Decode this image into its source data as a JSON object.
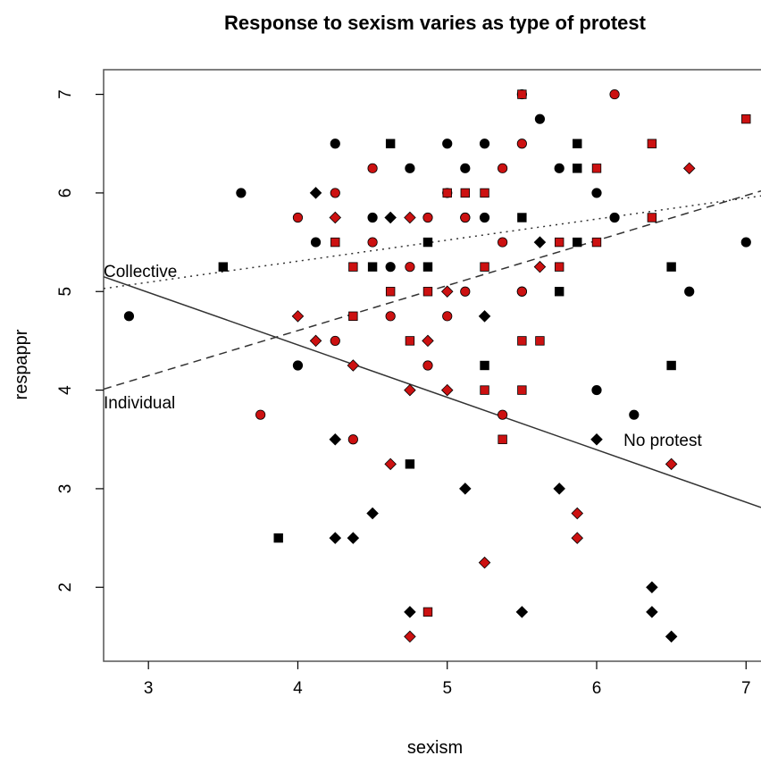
{
  "chart_data": {
    "type": "scatter",
    "title": "Response to sexism varies as type of protest",
    "xlabel": "sexism",
    "ylabel": "respappr",
    "xlim": [
      2.7,
      7.1
    ],
    "ylim": [
      1.25,
      7.25
    ],
    "x_ticks": [
      "3",
      "4",
      "5",
      "6",
      "7"
    ],
    "y_ticks": [
      "2",
      "3",
      "4",
      "5",
      "6",
      "7"
    ],
    "grid": false,
    "legend": "none",
    "colors": {
      "black": "#000000",
      "red": "#cc1111"
    },
    "series": [
      {
        "shape": "circle",
        "color": "black",
        "points": [
          [
            2.87,
            4.75
          ],
          [
            3.62,
            6.0
          ],
          [
            4.0,
            4.25
          ],
          [
            4.12,
            5.5
          ],
          [
            4.25,
            6.5
          ],
          [
            4.5,
            5.75
          ],
          [
            4.62,
            5.25
          ],
          [
            4.75,
            6.25
          ],
          [
            5.0,
            6.5
          ],
          [
            5.12,
            6.25
          ],
          [
            5.12,
            5.75
          ],
          [
            5.25,
            6.5
          ],
          [
            5.25,
            5.75
          ],
          [
            5.5,
            5.0
          ],
          [
            5.62,
            6.75
          ],
          [
            5.75,
            6.25
          ],
          [
            6.0,
            6.0
          ],
          [
            6.0,
            4.0
          ],
          [
            6.12,
            5.75
          ],
          [
            6.25,
            3.75
          ],
          [
            6.62,
            5.0
          ],
          [
            7.0,
            5.5
          ]
        ]
      },
      {
        "shape": "square",
        "color": "black",
        "points": [
          [
            3.5,
            5.25
          ],
          [
            3.87,
            2.5
          ],
          [
            4.5,
            5.25
          ],
          [
            4.62,
            6.5
          ],
          [
            4.75,
            3.25
          ],
          [
            4.87,
            5.5
          ],
          [
            4.87,
            5.25
          ],
          [
            5.25,
            4.25
          ],
          [
            5.5,
            5.75
          ],
          [
            5.75,
            5.0
          ],
          [
            5.87,
            6.5
          ],
          [
            5.87,
            6.25
          ],
          [
            5.87,
            5.5
          ],
          [
            6.5,
            5.25
          ],
          [
            6.5,
            4.25
          ]
        ]
      },
      {
        "shape": "diamond",
        "color": "black",
        "points": [
          [
            4.12,
            6.0
          ],
          [
            4.25,
            3.5
          ],
          [
            4.25,
            2.5
          ],
          [
            4.37,
            2.5
          ],
          [
            4.5,
            2.75
          ],
          [
            4.62,
            5.75
          ],
          [
            4.75,
            1.75
          ],
          [
            5.12,
            3.0
          ],
          [
            5.25,
            4.75
          ],
          [
            5.5,
            1.75
          ],
          [
            5.62,
            5.5
          ],
          [
            5.75,
            3.0
          ],
          [
            6.0,
            3.5
          ],
          [
            6.37,
            2.0
          ],
          [
            6.37,
            1.75
          ],
          [
            6.5,
            1.5
          ]
        ]
      },
      {
        "shape": "circle",
        "color": "red",
        "points": [
          [
            3.75,
            3.75
          ],
          [
            4.0,
            5.75
          ],
          [
            4.25,
            6.0
          ],
          [
            4.25,
            4.5
          ],
          [
            4.37,
            3.5
          ],
          [
            4.5,
            6.25
          ],
          [
            4.5,
            5.5
          ],
          [
            4.62,
            4.75
          ],
          [
            4.75,
            5.25
          ],
          [
            4.87,
            5.75
          ],
          [
            4.87,
            4.25
          ],
          [
            5.0,
            6.0
          ],
          [
            5.0,
            4.75
          ],
          [
            5.12,
            5.75
          ],
          [
            5.12,
            5.0
          ],
          [
            5.37,
            6.25
          ],
          [
            5.37,
            5.5
          ],
          [
            5.37,
            3.75
          ],
          [
            5.5,
            7.0
          ],
          [
            5.5,
            6.5
          ],
          [
            5.5,
            5.0
          ],
          [
            6.12,
            7.0
          ]
        ]
      },
      {
        "shape": "square",
        "color": "red",
        "points": [
          [
            4.25,
            5.5
          ],
          [
            4.37,
            5.25
          ],
          [
            4.37,
            4.75
          ],
          [
            4.62,
            5.0
          ],
          [
            4.75,
            4.5
          ],
          [
            4.87,
            5.0
          ],
          [
            4.87,
            1.75
          ],
          [
            5.0,
            6.0
          ],
          [
            5.12,
            6.0
          ],
          [
            5.25,
            6.0
          ],
          [
            5.25,
            5.25
          ],
          [
            5.25,
            4.0
          ],
          [
            5.37,
            3.5
          ],
          [
            5.5,
            7.0
          ],
          [
            5.5,
            4.5
          ],
          [
            5.5,
            4.0
          ],
          [
            5.62,
            4.5
          ],
          [
            5.75,
            5.5
          ],
          [
            5.75,
            5.25
          ],
          [
            6.0,
            6.25
          ],
          [
            6.0,
            5.5
          ],
          [
            6.37,
            6.5
          ],
          [
            6.37,
            5.75
          ],
          [
            7.0,
            6.75
          ]
        ]
      },
      {
        "shape": "diamond",
        "color": "red",
        "points": [
          [
            4.0,
            4.75
          ],
          [
            4.12,
            4.5
          ],
          [
            4.25,
            5.75
          ],
          [
            4.37,
            4.25
          ],
          [
            4.62,
            3.25
          ],
          [
            4.75,
            5.75
          ],
          [
            4.75,
            4.0
          ],
          [
            4.75,
            1.5
          ],
          [
            4.87,
            4.5
          ],
          [
            5.0,
            5.0
          ],
          [
            5.0,
            4.0
          ],
          [
            5.25,
            2.25
          ],
          [
            5.62,
            5.25
          ],
          [
            5.87,
            2.75
          ],
          [
            5.87,
            2.5
          ],
          [
            6.5,
            3.25
          ],
          [
            6.62,
            6.25
          ]
        ]
      }
    ],
    "lines": [
      {
        "label": "Collective",
        "style": "dotted",
        "x": [
          2.7,
          7.1
        ],
        "y": [
          5.03,
          5.97
        ]
      },
      {
        "label": "Individual",
        "style": "dashed",
        "x": [
          2.7,
          7.1
        ],
        "y": [
          4.01,
          6.02
        ]
      },
      {
        "label": "No protest",
        "style": "solid",
        "x": [
          2.7,
          7.1
        ],
        "y": [
          5.15,
          2.81
        ]
      }
    ],
    "annotations": [
      {
        "text": "Collective",
        "x": 2.7,
        "y": 5.2
      },
      {
        "text": "Individual",
        "x": 2.7,
        "y": 3.87
      },
      {
        "text": "No protest",
        "x": 6.18,
        "y": 3.49
      }
    ]
  }
}
